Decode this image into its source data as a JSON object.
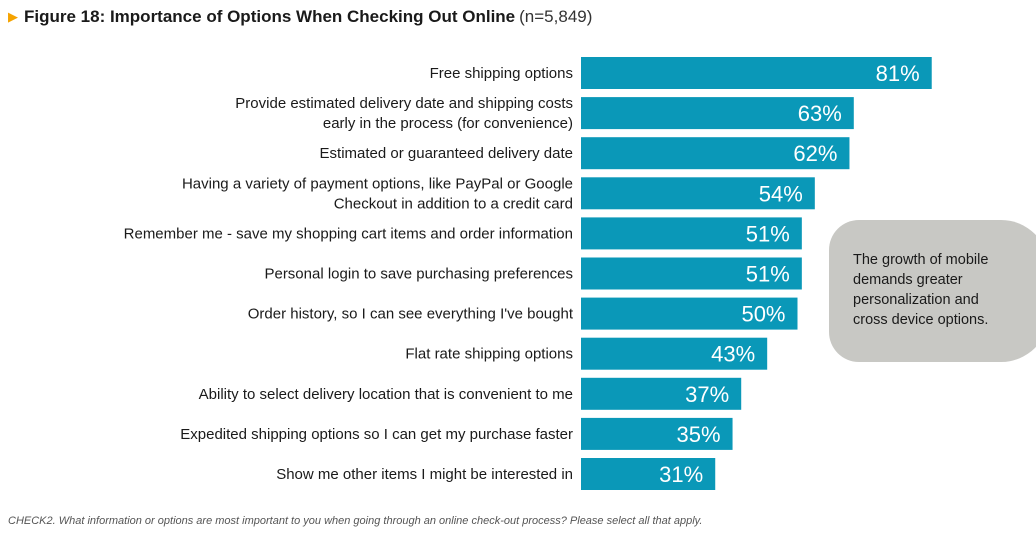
{
  "title": {
    "arrow_icon": "triangle-right-icon",
    "main": "Figure 18: Importance of Options When Checking Out Online",
    "sample": "(n=5,849)"
  },
  "colors": {
    "bar": "#0a98b8",
    "arrow": "#f5a300",
    "callout_bg": "#c8c8c4"
  },
  "chart_data": {
    "type": "bar",
    "orientation": "horizontal",
    "title": "Figure 18: Importance of Options When Checking Out Online (n=5,849)",
    "categories": [
      [
        "Free shipping options"
      ],
      [
        "Provide estimated delivery date and shipping costs",
        "early in the process (for convenience)"
      ],
      [
        "Estimated or guaranteed delivery date"
      ],
      [
        "Having a variety of payment options, like PayPal or Google",
        "Checkout in addition to a credit card"
      ],
      [
        "Remember me - save my shopping cart items and order information"
      ],
      [
        "Personal login to save purchasing preferences"
      ],
      [
        "Order history, so I can see everything I've bought"
      ],
      [
        "Flat rate shipping options"
      ],
      [
        "Ability to select delivery location that is convenient to me"
      ],
      [
        "Expedited shipping options so I can get my purchase faster"
      ],
      [
        "Show me other items I might be interested in"
      ]
    ],
    "values": [
      81,
      63,
      62,
      54,
      51,
      51,
      50,
      43,
      37,
      35,
      31
    ],
    "value_labels": [
      "81%",
      "63%",
      "62%",
      "54%",
      "51%",
      "51%",
      "50%",
      "43%",
      "37%",
      "35%",
      "31%"
    ],
    "value_unit": "%",
    "xlim": [
      0,
      100
    ],
    "grid": false,
    "legend": "none"
  },
  "callout": {
    "text": "The growth of mobile demands greater personalization and cross device options."
  },
  "footnote": "CHECK2.  What information or options are most important to you when going through an online check-out process? Please select all that apply."
}
